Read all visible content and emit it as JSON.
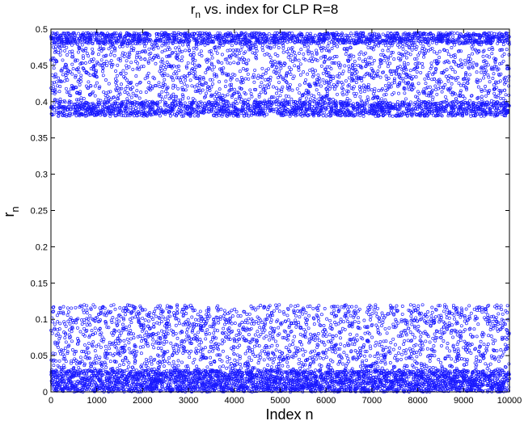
{
  "chart_data": {
    "type": "scatter",
    "title": {
      "main": "r",
      "sub": "n",
      "rest": " vs. index for CLP R=8"
    },
    "xlabel": "Index n",
    "ylabel": {
      "main": "r",
      "sub": "n"
    },
    "xlim": [
      0,
      10000
    ],
    "ylim": [
      0,
      0.5
    ],
    "xticks": [
      "0",
      "1000",
      "2000",
      "3000",
      "4000",
      "5000",
      "6000",
      "7000",
      "8000",
      "9000",
      "10000"
    ],
    "yticks": [
      "0",
      "0.05",
      "0.1",
      "0.15",
      "0.2",
      "0.25",
      "0.3",
      "0.35",
      "0.4",
      "0.45",
      "0.5"
    ],
    "grid": false,
    "marker": "open circle",
    "series": [
      {
        "color": "#1a1aff",
        "n_points": 10000,
        "bands": [
          {
            "range": [
              0.0,
              0.12
            ],
            "dense_near": [
              0.0,
              0.03
            ]
          },
          {
            "range": [
              0.38,
              0.5
            ],
            "dense_near": [
              [
                0.38,
                0.4
              ],
              [
                0.48,
                0.5
              ]
            ]
          }
        ]
      }
    ]
  }
}
